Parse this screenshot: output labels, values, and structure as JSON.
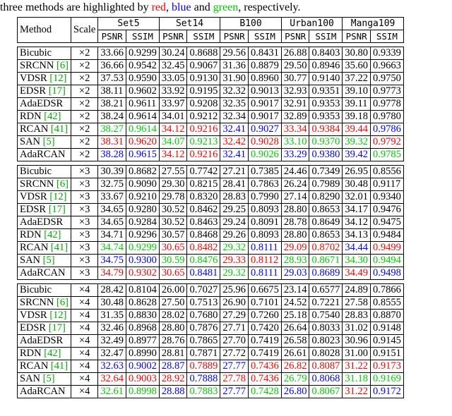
{
  "caption": {
    "prefix": "three methods are highlighted by ",
    "red_word": "red",
    "sep": ", ",
    "blue_word": "blue",
    "and": " and ",
    "green_word": "green",
    "suffix": ", respectively."
  },
  "colors": {
    "first": "#ff0000",
    "second": "#0000ff",
    "third": "#00cc00"
  },
  "table": {
    "header_method": "Method",
    "header_scale": "Scale",
    "datasets": [
      "Set5",
      "Set14",
      "B100",
      "Urban100",
      "Manga109"
    ],
    "metric_psnr": "PSNR",
    "metric_ssim": "SSIM",
    "groups": [
      {
        "scale": "×2",
        "rows": [
          {
            "method": "Bicubic",
            "ref": "",
            "values": [
              "33.66",
              "0.9299",
              "30.24",
              "0.8688",
              "29.56",
              "0.8431",
              "26.88",
              "0.8403",
              "30.80",
              "0.9339"
            ],
            "colors": [
              "",
              "",
              "",
              "",
              "",
              "",
              "",
              "",
              "",
              ""
            ]
          },
          {
            "method": "SRCNN",
            "ref": "[6]",
            "values": [
              "36.66",
              "0.9542",
              "32.45",
              "0.9067",
              "31.36",
              "0.8879",
              "29.50",
              "0.8946",
              "35.60",
              "0.9663"
            ],
            "colors": [
              "",
              "",
              "",
              "",
              "",
              "",
              "",
              "",
              "",
              ""
            ]
          },
          {
            "method": "VDSR",
            "ref": "[12]",
            "values": [
              "37.53",
              "0.9590",
              "33.05",
              "0.9130",
              "31.90",
              "0.8960",
              "30.77",
              "0.9140",
              "37.22",
              "0.9750"
            ],
            "colors": [
              "",
              "",
              "",
              "",
              "",
              "",
              "",
              "",
              "",
              ""
            ]
          },
          {
            "method": "EDSR",
            "ref": "[17]",
            "values": [
              "38.11",
              "0.9602",
              "33.92",
              "0.9195",
              "32.32",
              "0.9013",
              "32.93",
              "0.9351",
              "39.10",
              "0.9773"
            ],
            "colors": [
              "",
              "",
              "",
              "",
              "",
              "",
              "",
              "",
              "",
              ""
            ]
          },
          {
            "method": "AdaEDSR",
            "ref": "",
            "values": [
              "38.21",
              "0.9611",
              "33.97",
              "0.9208",
              "32.35",
              "0.9017",
              "32.91",
              "0.9353",
              "39.11",
              "0.9778"
            ],
            "colors": [
              "",
              "",
              "",
              "",
              "",
              "",
              "",
              "",
              "",
              ""
            ]
          },
          {
            "method": "RDN",
            "ref": "[42]",
            "values": [
              "38.24",
              "0.9614",
              "34.01",
              "0.9212",
              "32.34",
              "0.9017",
              "32.89",
              "0.9353",
              "39.18",
              "0.9780"
            ],
            "colors": [
              "",
              "",
              "",
              "",
              "",
              "",
              "",
              "",
              "",
              ""
            ]
          },
          {
            "method": "RCAN",
            "ref": "[41]",
            "values": [
              "38.27",
              "0.9614",
              "34.12",
              "0.9216",
              "32.41",
              "0.9027",
              "33.34",
              "0.9384",
              "39.44",
              "0.9786"
            ],
            "colors": [
              "green",
              "green",
              "red",
              "red",
              "blue",
              "blue",
              "red",
              "red",
              "red",
              "blue"
            ]
          },
          {
            "method": "SAN",
            "ref": "[5]",
            "values": [
              "38.31",
              "0.9620",
              "34.07",
              "0.9213",
              "32.42",
              "0.9028",
              "33.10",
              "0.9370",
              "39.32",
              "0.9792"
            ],
            "colors": [
              "red",
              "red",
              "green",
              "green",
              "red",
              "red",
              "green",
              "green",
              "green",
              "red"
            ]
          },
          {
            "method": "AdaRCAN",
            "ref": "",
            "values": [
              "38.28",
              "0.9615",
              "34.12",
              "0.9216",
              "32.41",
              "0.9026",
              "33.29",
              "0.9380",
              "39.42",
              "0.9785"
            ],
            "colors": [
              "blue",
              "blue",
              "red",
              "red",
              "blue",
              "green",
              "blue",
              "blue",
              "blue",
              "green"
            ]
          }
        ]
      },
      {
        "scale": "×3",
        "rows": [
          {
            "method": "Bicubic",
            "ref": "",
            "values": [
              "30.39",
              "0.8682",
              "27.55",
              "0.7742",
              "27.21",
              "0.7385",
              "24.46",
              "0.7349",
              "26.95",
              "0.8556"
            ],
            "colors": [
              "",
              "",
              "",
              "",
              "",
              "",
              "",
              "",
              "",
              ""
            ]
          },
          {
            "method": "SRCNN",
            "ref": "[6]",
            "values": [
              "32.75",
              "0.9090",
              "29.30",
              "0.8215",
              "28.41",
              "0.7863",
              "26.24",
              "0.7989",
              "30.48",
              "0.9117"
            ],
            "colors": [
              "",
              "",
              "",
              "",
              "",
              "",
              "",
              "",
              "",
              ""
            ]
          },
          {
            "method": "VDSR",
            "ref": "[12]",
            "values": [
              "33.67",
              "0.9210",
              "29.78",
              "0.8320",
              "28.83",
              "0.7990",
              "27.14",
              "0.8290",
              "32.01",
              "0.9340"
            ],
            "colors": [
              "",
              "",
              "",
              "",
              "",
              "",
              "",
              "",
              "",
              ""
            ]
          },
          {
            "method": "EDSR",
            "ref": "[17]",
            "values": [
              "34.65",
              "0.9280",
              "30.52",
              "0.8462",
              "29.25",
              "0.8093",
              "28.80",
              "0.8653",
              "34.17",
              "0.9476"
            ],
            "colors": [
              "",
              "",
              "",
              "",
              "",
              "",
              "",
              "",
              "",
              ""
            ]
          },
          {
            "method": "AdaEDSR",
            "ref": "",
            "values": [
              "34.65",
              "0.9284",
              "30.52",
              "0.8463",
              "29.24",
              "0.8091",
              "28.78",
              "0.8649",
              "34.12",
              "0.9475"
            ],
            "colors": [
              "",
              "",
              "",
              "",
              "",
              "",
              "",
              "",
              "",
              ""
            ]
          },
          {
            "method": "RDN",
            "ref": "[42]",
            "values": [
              "34.71",
              "0.9296",
              "30.57",
              "0.8468",
              "29.26",
              "0.8093",
              "28.80",
              "0.8653",
              "34.13",
              "0.9484"
            ],
            "colors": [
              "",
              "",
              "",
              "",
              "",
              "",
              "",
              "",
              "",
              ""
            ]
          },
          {
            "method": "RCAN",
            "ref": "[41]",
            "values": [
              "34.74",
              "0.9299",
              "30.65",
              "0.8482",
              "29.32",
              "0.8111",
              "29.09",
              "0.8702",
              "34.44",
              "0.9499"
            ],
            "colors": [
              "green",
              "green",
              "red",
              "red",
              "green",
              "blue",
              "red",
              "red",
              "blue",
              "red"
            ]
          },
          {
            "method": "SAN",
            "ref": "[5]",
            "values": [
              "34.75",
              "0.9300",
              "30.59",
              "0.8476",
              "29.33",
              "0.8112",
              "28.93",
              "0.8671",
              "34.30",
              "0.9494"
            ],
            "colors": [
              "blue",
              "blue",
              "green",
              "green",
              "red",
              "red",
              "green",
              "green",
              "green",
              "green"
            ]
          },
          {
            "method": "AdaRCAN",
            "ref": "",
            "values": [
              "34.79",
              "0.9302",
              "30.65",
              "0.8481",
              "29.32",
              "0.8111",
              "29.03",
              "0.8689",
              "34.49",
              "0.9498"
            ],
            "colors": [
              "red",
              "red",
              "red",
              "blue",
              "green",
              "blue",
              "blue",
              "blue",
              "red",
              "blue"
            ]
          }
        ]
      },
      {
        "scale": "×4",
        "rows": [
          {
            "method": "Bicubic",
            "ref": "",
            "values": [
              "28.42",
              "0.8104",
              "26.00",
              "0.7027",
              "25.96",
              "0.6675",
              "23.14",
              "0.6577",
              "24.89",
              "0.7866"
            ],
            "colors": [
              "",
              "",
              "",
              "",
              "",
              "",
              "",
              "",
              "",
              ""
            ]
          },
          {
            "method": "SRCNN",
            "ref": "[6]",
            "values": [
              "30.48",
              "0.8628",
              "27.50",
              "0.7513",
              "26.90",
              "0.7101",
              "24.52",
              "0.7221",
              "27.58",
              "0.8555"
            ],
            "colors": [
              "",
              "",
              "",
              "",
              "",
              "",
              "",
              "",
              "",
              ""
            ]
          },
          {
            "method": "VDSR",
            "ref": "[12]",
            "values": [
              "31.35",
              "0.8830",
              "28.02",
              "0.7680",
              "27.29",
              "0.7260",
              "25.18",
              "0.7540",
              "28.83",
              "0.8870"
            ],
            "colors": [
              "",
              "",
              "",
              "",
              "",
              "",
              "",
              "",
              "",
              ""
            ]
          },
          {
            "method": "EDSR",
            "ref": "[17]",
            "values": [
              "32.46",
              "0.8968",
              "28.80",
              "0.7876",
              "27.71",
              "0.7420",
              "26.64",
              "0.8033",
              "31.02",
              "0.9148"
            ],
            "colors": [
              "",
              "",
              "",
              "",
              "",
              "",
              "",
              "",
              "",
              ""
            ]
          },
          {
            "method": "AdaEDSR",
            "ref": "",
            "values": [
              "32.49",
              "0.8977",
              "28.76",
              "0.7865",
              "27.70",
              "0.7419",
              "26.58",
              "0.8023",
              "30.96",
              "0.9145"
            ],
            "colors": [
              "",
              "",
              "",
              "",
              "",
              "",
              "",
              "",
              "",
              ""
            ]
          },
          {
            "method": "RDN",
            "ref": "[42]",
            "values": [
              "32.47",
              "0.8990",
              "28.81",
              "0.7871",
              "27.72",
              "0.7419",
              "26.61",
              "0.8028",
              "31.00",
              "0.9151"
            ],
            "colors": [
              "",
              "",
              "",
              "",
              "",
              "",
              "",
              "",
              "",
              ""
            ]
          },
          {
            "method": "RCAN",
            "ref": "[41]",
            "values": [
              "32.63",
              "0.9002",
              "28.87",
              "0.7889",
              "27.77",
              "0.7436",
              "26.82",
              "0.8087",
              "31.22",
              "0.9173"
            ],
            "colors": [
              "blue",
              "blue",
              "blue",
              "red",
              "blue",
              "red",
              "red",
              "red",
              "red",
              "red"
            ]
          },
          {
            "method": "SAN",
            "ref": "[5]",
            "values": [
              "32.64",
              "0.9003",
              "28.92",
              "0.7888",
              "27.78",
              "0.7436",
              "26.79",
              "0.8068",
              "31.18",
              "0.9169"
            ],
            "colors": [
              "red",
              "red",
              "red",
              "blue",
              "red",
              "red",
              "green",
              "blue",
              "green",
              "green"
            ]
          },
          {
            "method": "AdaRCAN",
            "ref": "",
            "values": [
              "32.61",
              "0.8998",
              "28.88",
              "0.7883",
              "27.77",
              "0.7428",
              "26.80",
              "0.8067",
              "31.22",
              "0.9172"
            ],
            "colors": [
              "green",
              "green",
              "blue",
              "green",
              "blue",
              "green",
              "blue",
              "green",
              "red",
              "blue"
            ]
          }
        ]
      }
    ]
  }
}
